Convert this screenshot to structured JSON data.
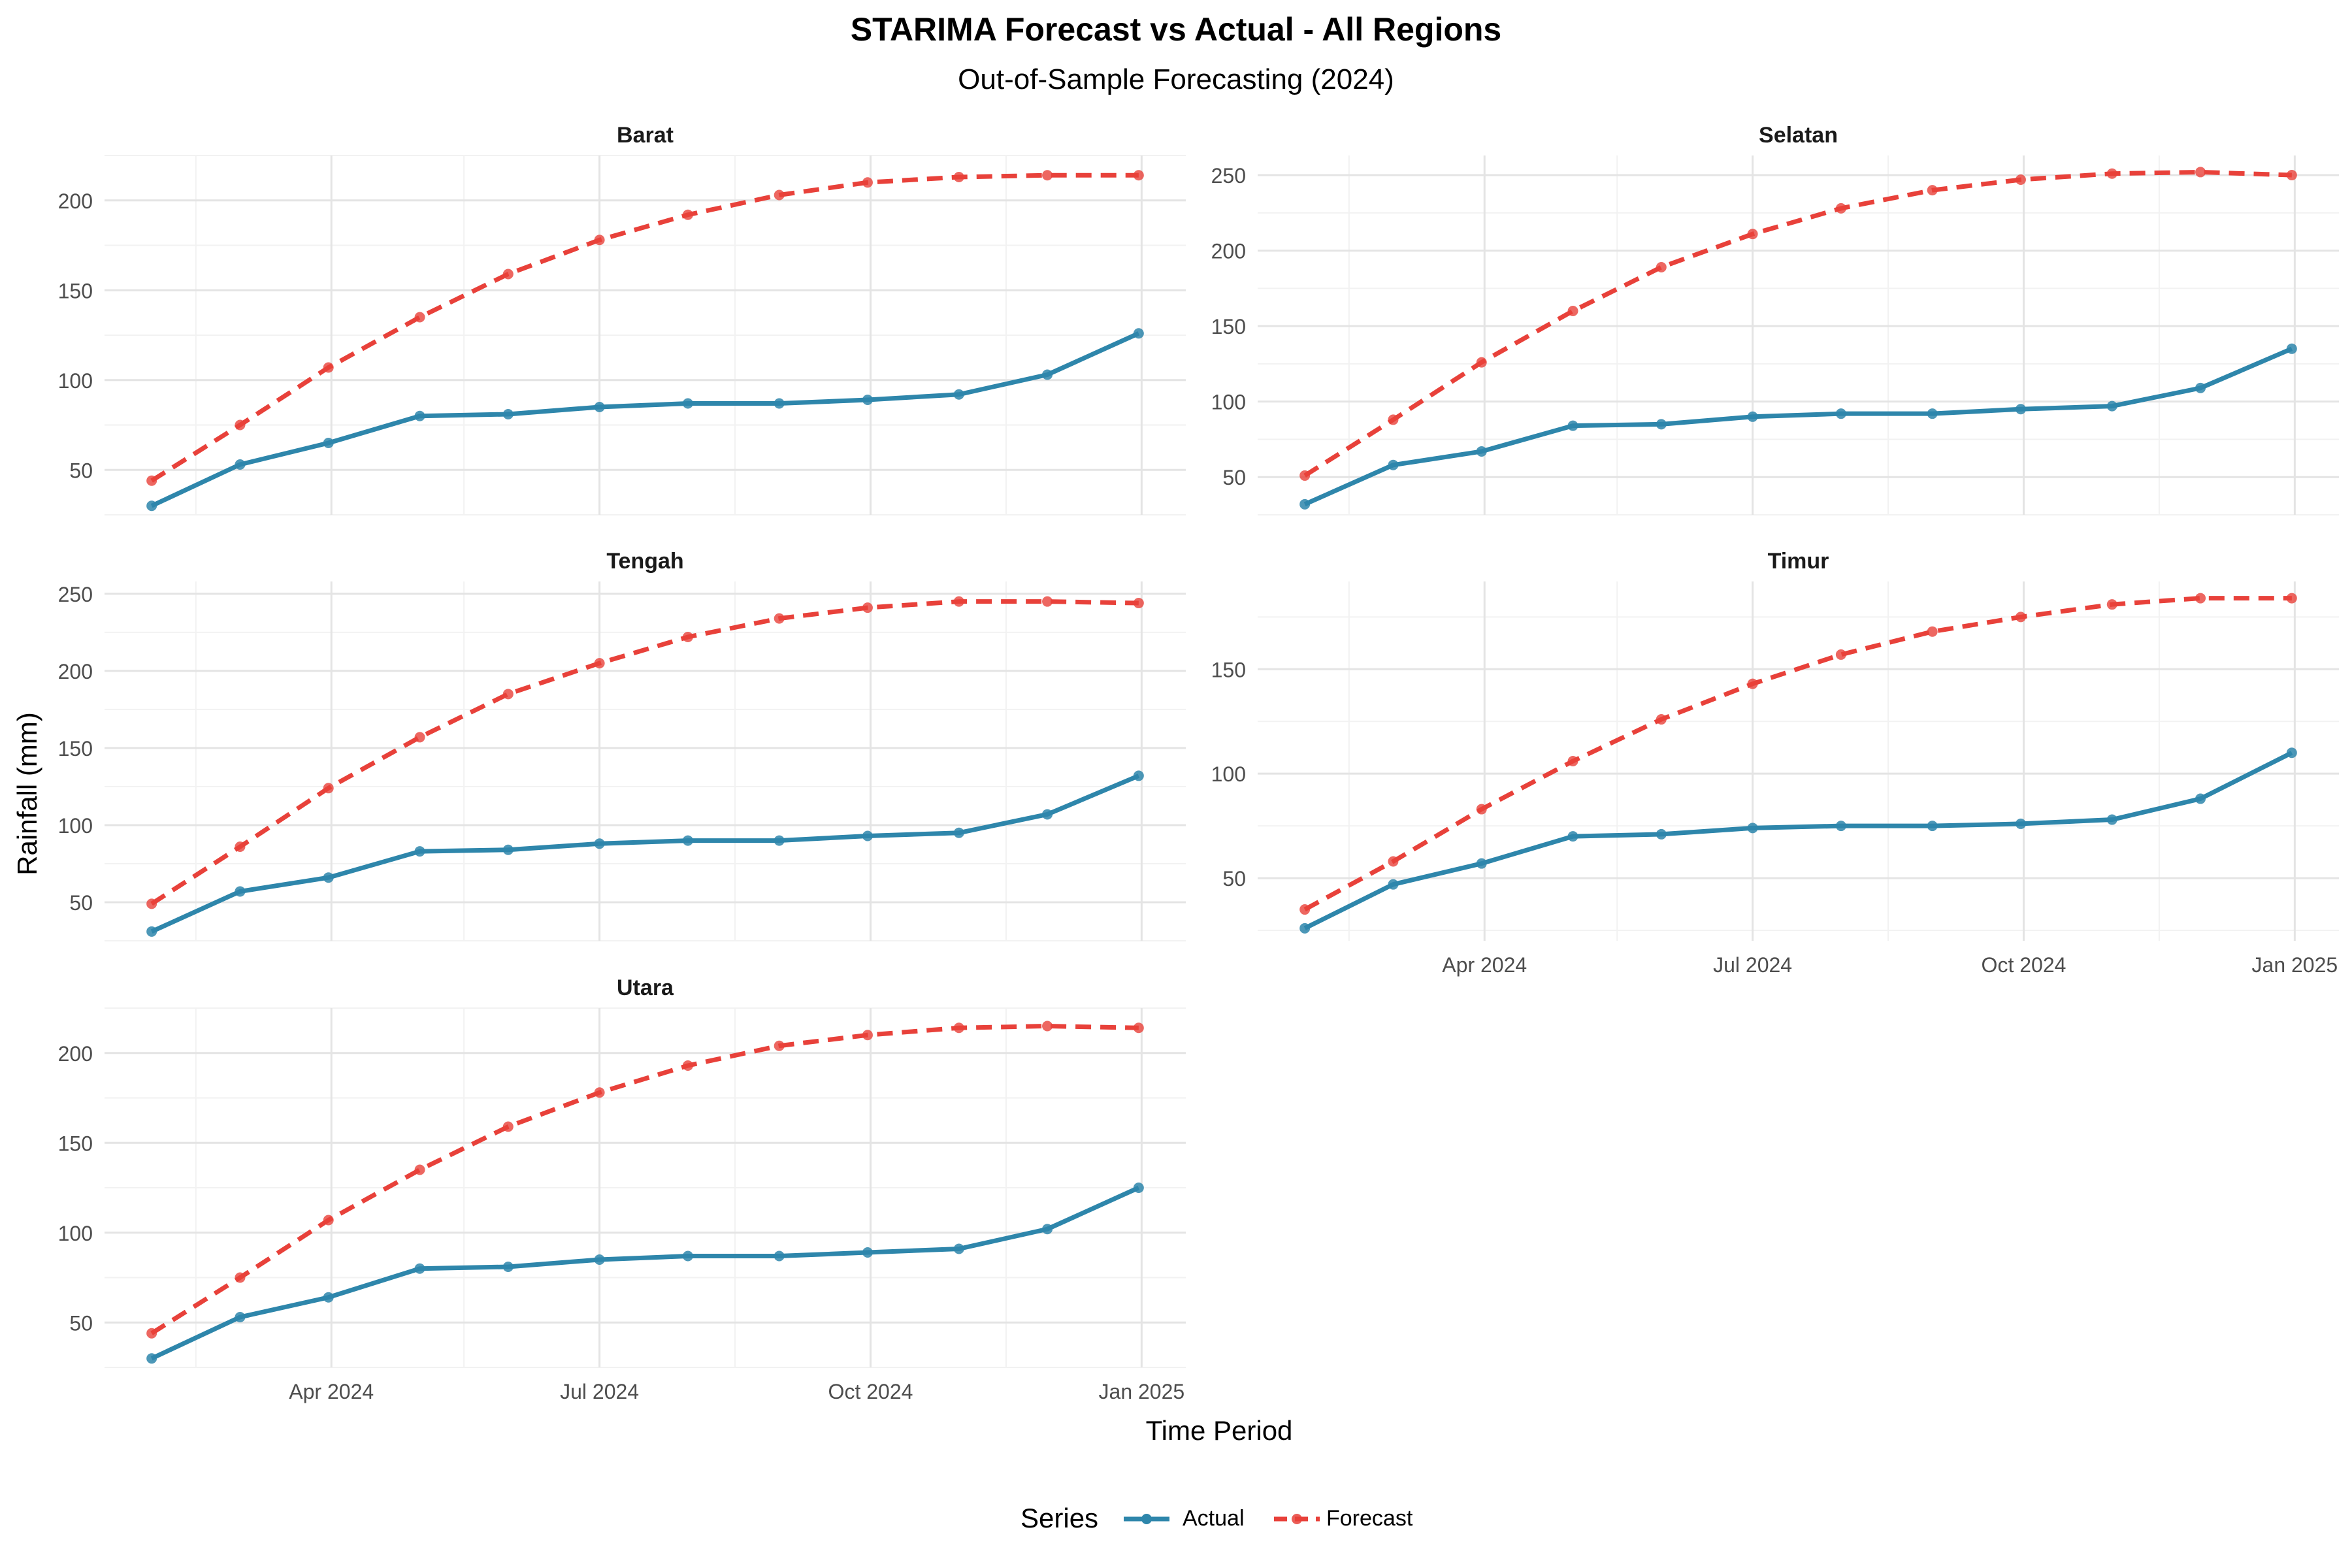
{
  "title": "STARIMA Forecast vs Actual - All Regions",
  "subtitle": "Out-of-Sample Forecasting (2024)",
  "xlabel": "Time Period",
  "ylabel": "Rainfall (mm)",
  "legend": {
    "title": "Series",
    "items": [
      "Actual",
      "Forecast"
    ]
  },
  "colors": {
    "actual": "#2e86ab",
    "forecast": "#e8413a"
  },
  "chart_data": [
    {
      "type": "line",
      "panel": "Barat",
      "x": [
        "2024-01-31",
        "2024-03-01",
        "2024-03-31",
        "2024-05-01",
        "2024-05-31",
        "2024-07-01",
        "2024-07-31",
        "2024-08-31",
        "2024-09-30",
        "2024-10-31",
        "2024-11-30",
        "2024-12-31"
      ],
      "series": [
        {
          "name": "Actual",
          "values": [
            30,
            53,
            65,
            80,
            81,
            85,
            87,
            87,
            89,
            92,
            103,
            126
          ]
        },
        {
          "name": "Forecast",
          "values": [
            44,
            75,
            107,
            135,
            159,
            178,
            192,
            203,
            210,
            213,
            214,
            214
          ]
        }
      ],
      "yticks": [
        50,
        100,
        150,
        200
      ],
      "ylim": [
        25,
        225
      ]
    },
    {
      "type": "line",
      "panel": "Selatan",
      "x": [
        "2024-01-31",
        "2024-03-01",
        "2024-03-31",
        "2024-05-01",
        "2024-05-31",
        "2024-07-01",
        "2024-07-31",
        "2024-08-31",
        "2024-09-30",
        "2024-10-31",
        "2024-11-30",
        "2024-12-31"
      ],
      "series": [
        {
          "name": "Actual",
          "values": [
            32,
            58,
            67,
            84,
            85,
            90,
            92,
            92,
            95,
            97,
            109,
            135
          ]
        },
        {
          "name": "Forecast",
          "values": [
            51,
            88,
            126,
            160,
            189,
            211,
            228,
            240,
            247,
            251,
            252,
            250
          ]
        }
      ],
      "yticks": [
        50,
        100,
        150,
        200,
        250
      ],
      "ylim": [
        25,
        263
      ]
    },
    {
      "type": "line",
      "panel": "Tengah",
      "x": [
        "2024-01-31",
        "2024-03-01",
        "2024-03-31",
        "2024-05-01",
        "2024-05-31",
        "2024-07-01",
        "2024-07-31",
        "2024-08-31",
        "2024-09-30",
        "2024-10-31",
        "2024-11-30",
        "2024-12-31"
      ],
      "series": [
        {
          "name": "Actual",
          "values": [
            31,
            57,
            66,
            83,
            84,
            88,
            90,
            90,
            93,
            95,
            107,
            132
          ]
        },
        {
          "name": "Forecast",
          "values": [
            49,
            86,
            124,
            157,
            185,
            205,
            222,
            234,
            241,
            245,
            245,
            244
          ]
        }
      ],
      "yticks": [
        50,
        100,
        150,
        200,
        250
      ],
      "ylim": [
        25,
        258
      ]
    },
    {
      "type": "line",
      "panel": "Timur",
      "x": [
        "2024-01-31",
        "2024-03-01",
        "2024-03-31",
        "2024-05-01",
        "2024-05-31",
        "2024-07-01",
        "2024-07-31",
        "2024-08-31",
        "2024-09-30",
        "2024-10-31",
        "2024-11-30",
        "2024-12-31"
      ],
      "series": [
        {
          "name": "Actual",
          "values": [
            26,
            47,
            57,
            70,
            71,
            74,
            75,
            75,
            76,
            78,
            88,
            110
          ]
        },
        {
          "name": "Forecast",
          "values": [
            35,
            58,
            83,
            106,
            126,
            143,
            157,
            168,
            175,
            181,
            184,
            184
          ]
        }
      ],
      "yticks": [
        50,
        100,
        150
      ],
      "ylim": [
        20,
        192
      ]
    },
    {
      "type": "line",
      "panel": "Utara",
      "x": [
        "2024-01-31",
        "2024-03-01",
        "2024-03-31",
        "2024-05-01",
        "2024-05-31",
        "2024-07-01",
        "2024-07-31",
        "2024-08-31",
        "2024-09-30",
        "2024-10-31",
        "2024-11-30",
        "2024-12-31"
      ],
      "series": [
        {
          "name": "Actual",
          "values": [
            30,
            53,
            64,
            80,
            81,
            85,
            87,
            87,
            89,
            91,
            102,
            125
          ]
        },
        {
          "name": "Forecast",
          "values": [
            44,
            75,
            107,
            135,
            159,
            178,
            193,
            204,
            210,
            214,
            215,
            214
          ]
        }
      ],
      "yticks": [
        50,
        100,
        150,
        200
      ],
      "ylim": [
        25,
        225
      ]
    }
  ],
  "xticks": [
    {
      "date": "2024-04-01",
      "label": "Apr 2024"
    },
    {
      "date": "2024-07-01",
      "label": "Jul 2024"
    },
    {
      "date": "2024-10-01",
      "label": "Oct 2024"
    },
    {
      "date": "2025-01-01",
      "label": "Jan 2025"
    }
  ],
  "xminor": [
    "2024-02-15",
    "2024-05-16",
    "2024-08-16",
    "2024-11-16"
  ],
  "xlim": [
    "2024-01-15",
    "2025-01-16"
  ]
}
